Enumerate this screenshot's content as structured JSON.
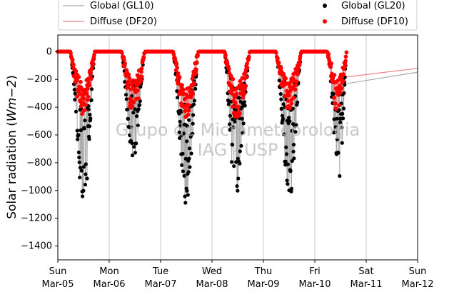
{
  "chart_data": {
    "type": "line",
    "title": "",
    "xlabel": "",
    "ylabel_main": "Solar radiation (",
    "ylabel_unit": "Wm−2",
    "ylabel_close": ")",
    "ylim": [
      -1500,
      120
    ],
    "xlim": [
      0,
      7
    ],
    "yticks": [
      0,
      -200,
      -400,
      -600,
      -800,
      -1000,
      -1200,
      -1400
    ],
    "ytick_labels": [
      "0",
      "−200",
      "−400",
      "−600",
      "−800",
      "−1000",
      "−1200",
      "−1400"
    ],
    "xticks": [
      {
        "x": 0,
        "day": "Sun",
        "date": "Mar-05"
      },
      {
        "x": 1,
        "day": "Mon",
        "date": "Mar-06"
      },
      {
        "x": 2,
        "day": "Tue",
        "date": "Mar-07"
      },
      {
        "x": 3,
        "day": "Wed",
        "date": "Mar-08"
      },
      {
        "x": 4,
        "day": "Thu",
        "date": "Mar-09"
      },
      {
        "x": 5,
        "day": "Fri",
        "date": "Mar-10"
      },
      {
        "x": 6,
        "day": "Sat",
        "date": "Mar-11"
      },
      {
        "x": 7,
        "day": "Sun",
        "date": "Mar-12"
      }
    ],
    "grid_x": true,
    "legend_position": "top",
    "series": [
      {
        "name": "Global (GL10)",
        "kind": "line",
        "color": "#aaaaaa"
      },
      {
        "name": "Diffuse (DF20)",
        "kind": "line",
        "color": "#f08080"
      },
      {
        "name": "Global (GL20)",
        "kind": "points",
        "color": "#000000"
      },
      {
        "name": "Diffuse (DF10)",
        "kind": "points",
        "color": "#ff0000"
      }
    ],
    "days": [
      {
        "start": 0.24,
        "end": 0.72,
        "global_peak": -1130,
        "diffuse_peak": -450,
        "global_peak_at": 0.52
      },
      {
        "start": 1.24,
        "end": 1.7,
        "global_peak": -800,
        "diffuse_peak": -450,
        "global_peak_at": 1.46
      },
      {
        "start": 2.24,
        "end": 2.74,
        "global_peak": -1100,
        "diffuse_peak": -480,
        "global_peak_at": 2.5
      },
      {
        "start": 3.24,
        "end": 3.74,
        "global_peak": -1050,
        "diffuse_peak": -490,
        "global_peak_at": 3.46
      },
      {
        "start": 4.24,
        "end": 4.74,
        "global_peak": -1050,
        "diffuse_peak": -420,
        "global_peak_at": 4.52
      },
      {
        "start": 5.24,
        "end": 5.62,
        "global_peak": -900,
        "diffuse_peak": -420,
        "global_peak_at": 5.48
      }
    ],
    "tail_lines": {
      "x_from": 5.62,
      "x_to": 7.0,
      "global_from": -230,
      "global_to": -148,
      "diffuse_from": -182,
      "diffuse_to": -120
    },
    "watermark_line1": "Grupo de Micrometeorologia",
    "watermark_line2": "IAG - USP"
  }
}
